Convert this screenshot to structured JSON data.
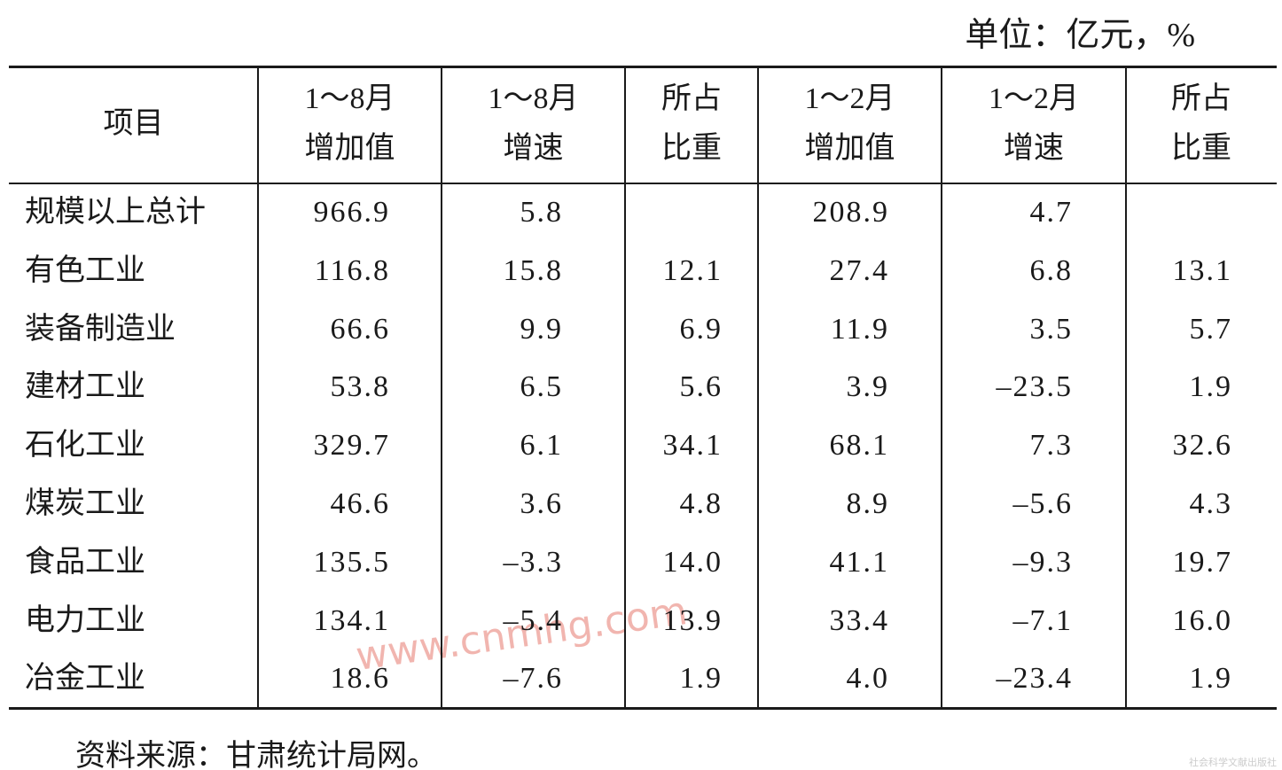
{
  "unit": "单位：亿元，%",
  "table": {
    "header": [
      [
        "项目"
      ],
      [
        "1～8月",
        "增加值"
      ],
      [
        "1～8月",
        "增速"
      ],
      [
        "所占",
        "比重"
      ],
      [
        "1～2月",
        "增加值"
      ],
      [
        "1～2月",
        "增速"
      ],
      [
        "所占",
        "比重"
      ]
    ],
    "rows": [
      [
        "规模以上总计",
        "966.9",
        "5.8",
        null,
        "208.9",
        "4.7",
        null
      ],
      [
        "有色工业",
        "116.8",
        "15.8",
        "12.1",
        "27.4",
        "6.8",
        "13.1"
      ],
      [
        "装备制造业",
        "66.6",
        "9.9",
        "6.9",
        "11.9",
        "3.5",
        "5.7"
      ],
      [
        "建材工业",
        "53.8",
        "6.5",
        "5.6",
        "3.9",
        "–23.5",
        "1.9"
      ],
      [
        "石化工业",
        "329.7",
        "6.1",
        "34.1",
        "68.1",
        "7.3",
        "32.6"
      ],
      [
        "煤炭工业",
        "46.6",
        "3.6",
        "4.8",
        "8.9",
        "–5.6",
        "4.3"
      ],
      [
        "食品工业",
        "135.5",
        "–3.3",
        "14.0",
        "41.1",
        "–9.3",
        "19.7"
      ],
      [
        "电力工业",
        "134.1",
        "–5.4",
        "13.9",
        "33.4",
        "–7.1",
        "16.0"
      ],
      [
        "冶金工业",
        "18.6",
        "–7.6",
        "1.9",
        "4.0",
        "–23.4",
        "1.9"
      ]
    ]
  },
  "source": "资料来源：甘肃统计局网。",
  "watermark": "www.cnmhg.com",
  "publisher_mark": "社会科学文献出版社"
}
